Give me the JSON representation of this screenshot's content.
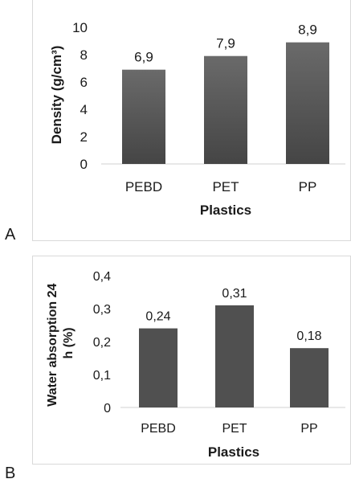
{
  "chart_data": [
    {
      "type": "bar",
      "panel": "A",
      "categories": [
        "PEBD",
        "PET",
        "PP"
      ],
      "values": [
        6.9,
        7.9,
        8.9
      ],
      "value_labels": [
        "6,9",
        "7,9",
        "8,9"
      ],
      "xlabel": "Plastics",
      "ylabel": "Density (g/cm³)",
      "ylim": [
        0,
        10
      ],
      "yticks": [
        0,
        2,
        4,
        6,
        8,
        10
      ],
      "ytick_labels": [
        "0",
        "2",
        "4",
        "6",
        "8",
        "10"
      ],
      "grid": false,
      "bar_color": "#505050"
    },
    {
      "type": "bar",
      "panel": "B",
      "categories": [
        "PEBD",
        "PET",
        "PP"
      ],
      "values": [
        0.24,
        0.31,
        0.18
      ],
      "value_labels": [
        "0,24",
        "0,31",
        "0,18"
      ],
      "xlabel": "Plastics",
      "ylabel": "Water absorption 24 h (%)",
      "ylabel_lines": [
        "Water absorption 24",
        "h (%)"
      ],
      "ylim": [
        0,
        0.4
      ],
      "yticks": [
        0,
        0.1,
        0.2,
        0.3,
        0.4
      ],
      "ytick_labels": [
        "0",
        "0,1",
        "0,2",
        "0,3",
        "0,4"
      ],
      "grid": false,
      "bar_color": "#505050"
    }
  ],
  "panels": {
    "a_label": "A",
    "b_label": "B"
  }
}
